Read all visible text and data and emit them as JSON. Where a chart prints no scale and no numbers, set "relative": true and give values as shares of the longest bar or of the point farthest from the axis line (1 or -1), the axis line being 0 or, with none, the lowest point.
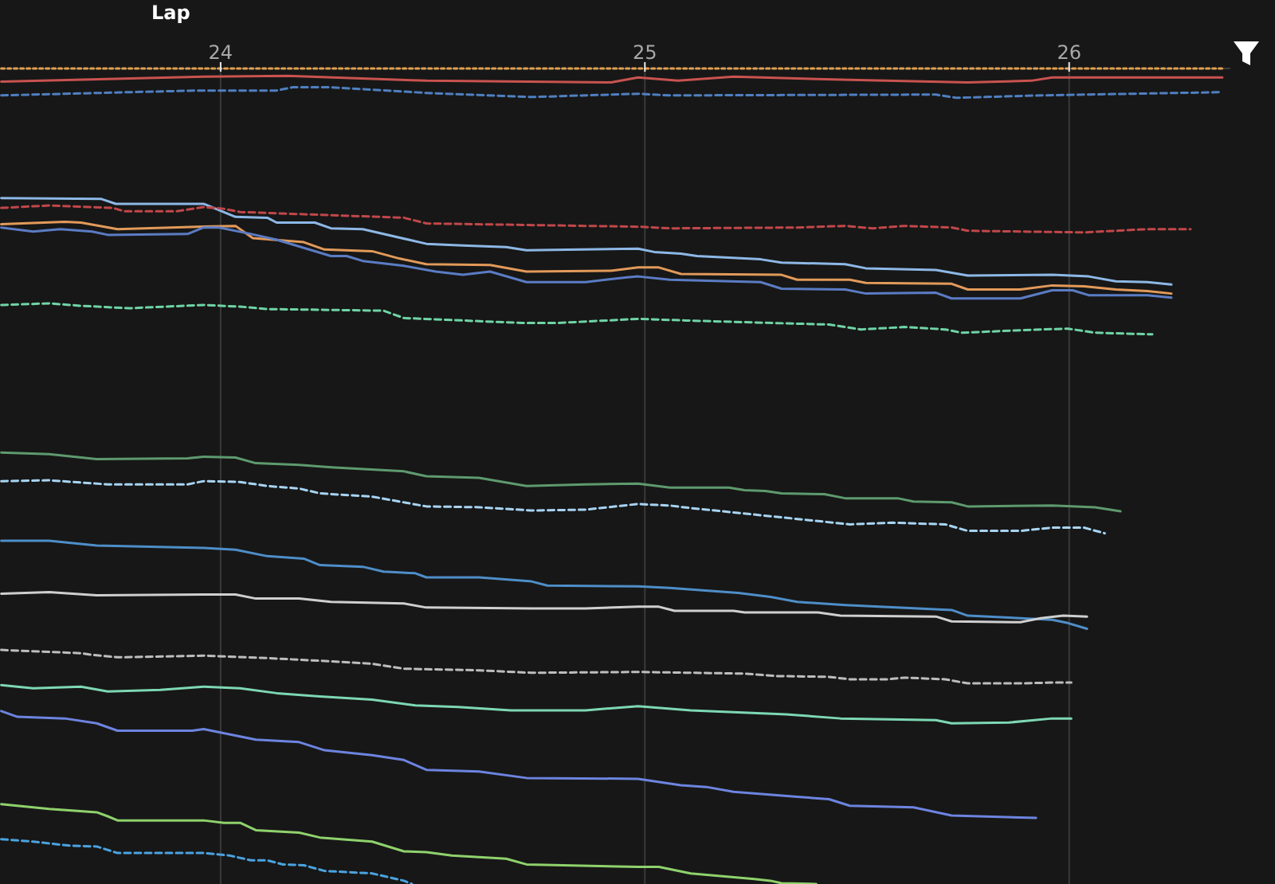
{
  "chart_data": {
    "type": "line",
    "xlabel": "Lap",
    "relative": true,
    "xlim": [
      23.48,
      26.38
    ],
    "xticks": [
      24,
      25,
      26
    ],
    "grid": "x",
    "tick_labels": "x",
    "series": [
      {
        "color": "#c9534f",
        "x": [
          23.483,
          23.96,
          24.158,
          24.485,
          24.92,
          24.984,
          25.078,
          25.209,
          25.483,
          25.761,
          25.911,
          25.96,
          26.361
        ],
        "values": [
          0.984,
          0.99,
          0.991,
          0.985,
          0.983,
          0.989,
          0.985,
          0.99,
          0.986,
          0.983,
          0.985,
          0.989,
          0.989
        ]
      },
      {
        "color": "#4f7fc0",
        "line_style": "dashed",
        "x": [
          23.483,
          23.633,
          23.945,
          24.132,
          24.17,
          24.26,
          24.485,
          24.733,
          24.984,
          25.059,
          25.686,
          25.735,
          25.933,
          26.361
        ],
        "values": [
          0.967,
          0.969,
          0.973,
          0.973,
          0.977,
          0.977,
          0.97,
          0.965,
          0.969,
          0.967,
          0.968,
          0.964,
          0.967,
          0.971
        ]
      },
      {
        "color": "#8db8e6",
        "x": [
          23.483,
          23.719,
          23.753,
          23.96,
          24.035,
          24.11,
          24.132,
          24.222,
          24.26,
          24.335,
          24.485,
          24.571,
          24.673,
          24.721,
          24.984,
          25.022,
          25.085,
          25.123,
          25.273,
          25.322,
          25.472,
          25.521,
          25.686,
          25.761,
          25.96,
          26.046,
          26.11,
          26.185,
          26.241
        ],
        "values": [
          0.841,
          0.84,
          0.834,
          0.834,
          0.818,
          0.817,
          0.811,
          0.811,
          0.804,
          0.803,
          0.785,
          0.783,
          0.781,
          0.777,
          0.779,
          0.775,
          0.773,
          0.77,
          0.766,
          0.762,
          0.76,
          0.755,
          0.753,
          0.746,
          0.747,
          0.745,
          0.739,
          0.738,
          0.735
        ]
      },
      {
        "color": "#c0474a",
        "line_style": "dashed",
        "x": [
          23.483,
          23.596,
          23.746,
          23.772,
          23.896,
          23.96,
          24.008,
          24.046,
          24.432,
          24.485,
          24.86,
          24.984,
          25.059,
          25.359,
          25.472,
          25.536,
          25.611,
          25.723,
          25.761,
          26.035,
          26.185,
          26.286
        ],
        "values": [
          0.829,
          0.832,
          0.829,
          0.825,
          0.825,
          0.83,
          0.828,
          0.824,
          0.817,
          0.81,
          0.807,
          0.806,
          0.804,
          0.805,
          0.807,
          0.804,
          0.807,
          0.805,
          0.801,
          0.799,
          0.803,
          0.803
        ]
      },
      {
        "color": "#e29a5a",
        "x": [
          23.483,
          23.633,
          23.671,
          23.757,
          23.945,
          24.035,
          24.076,
          24.196,
          24.245,
          24.357,
          24.421,
          24.485,
          24.635,
          24.721,
          24.92,
          24.984,
          25.033,
          25.085,
          25.322,
          25.359,
          25.483,
          25.521,
          25.723,
          25.761,
          25.885,
          25.96,
          26.035,
          26.11,
          26.185,
          26.241
        ],
        "values": [
          0.809,
          0.812,
          0.811,
          0.803,
          0.806,
          0.807,
          0.792,
          0.787,
          0.778,
          0.776,
          0.767,
          0.76,
          0.759,
          0.751,
          0.752,
          0.756,
          0.756,
          0.748,
          0.747,
          0.741,
          0.741,
          0.737,
          0.736,
          0.729,
          0.729,
          0.734,
          0.733,
          0.729,
          0.727,
          0.724
        ]
      },
      {
        "color": "#5b7cc4",
        "x": [
          23.483,
          23.558,
          23.622,
          23.697,
          23.734,
          23.922,
          23.96,
          23.997,
          24.072,
          24.132,
          24.26,
          24.297,
          24.335,
          24.432,
          24.507,
          24.571,
          24.635,
          24.721,
          24.86,
          24.958,
          24.984,
          25.059,
          25.273,
          25.322,
          25.472,
          25.521,
          25.686,
          25.723,
          25.885,
          25.96,
          26.008,
          26.046,
          26.185,
          26.241
        ],
        "values": [
          0.805,
          0.8,
          0.803,
          0.8,
          0.796,
          0.797,
          0.805,
          0.805,
          0.797,
          0.79,
          0.77,
          0.77,
          0.764,
          0.758,
          0.751,
          0.747,
          0.751,
          0.738,
          0.738,
          0.744,
          0.745,
          0.741,
          0.738,
          0.73,
          0.729,
          0.724,
          0.725,
          0.718,
          0.718,
          0.728,
          0.728,
          0.722,
          0.722,
          0.719
        ]
      },
      {
        "color": "#6fd4a6",
        "line_style": "dashed",
        "x": [
          23.483,
          23.596,
          23.671,
          23.783,
          23.96,
          24.046,
          24.11,
          24.384,
          24.432,
          24.71,
          24.796,
          24.984,
          25.097,
          25.434,
          25.509,
          25.611,
          25.708,
          25.746,
          25.933,
          25.997,
          26.061,
          26.196
        ],
        "values": [
          0.71,
          0.712,
          0.709,
          0.706,
          0.71,
          0.708,
          0.705,
          0.703,
          0.694,
          0.688,
          0.688,
          0.693,
          0.691,
          0.686,
          0.68,
          0.683,
          0.68,
          0.676,
          0.68,
          0.681,
          0.676,
          0.674
        ]
      },
      {
        "color": "#5e9a6e",
        "x": [
          23.483,
          23.596,
          23.708,
          23.922,
          23.96,
          24.035,
          24.083,
          24.185,
          24.26,
          24.432,
          24.485,
          24.609,
          24.721,
          24.86,
          24.984,
          25.059,
          25.198,
          25.235,
          25.284,
          25.322,
          25.423,
          25.472,
          25.596,
          25.633,
          25.723,
          25.761,
          25.96,
          26.061,
          26.121
        ],
        "values": [
          0.529,
          0.527,
          0.521,
          0.522,
          0.524,
          0.523,
          0.516,
          0.514,
          0.511,
          0.506,
          0.5,
          0.498,
          0.488,
          0.49,
          0.491,
          0.486,
          0.486,
          0.483,
          0.482,
          0.479,
          0.478,
          0.473,
          0.473,
          0.469,
          0.468,
          0.463,
          0.464,
          0.462,
          0.457
        ]
      },
      {
        "color": "#a7d4f2",
        "line_style": "dashed",
        "x": [
          23.483,
          23.596,
          23.734,
          23.922,
          23.96,
          24.046,
          24.11,
          24.185,
          24.234,
          24.357,
          24.485,
          24.609,
          24.733,
          24.86,
          24.984,
          25.059,
          25.108,
          25.296,
          25.483,
          25.584,
          25.708,
          25.761,
          25.885,
          25.96,
          26.035,
          26.084
        ],
        "values": [
          0.494,
          0.495,
          0.49,
          0.49,
          0.494,
          0.493,
          0.488,
          0.485,
          0.479,
          0.475,
          0.463,
          0.462,
          0.458,
          0.459,
          0.466,
          0.464,
          0.461,
          0.451,
          0.441,
          0.443,
          0.441,
          0.433,
          0.433,
          0.437,
          0.437,
          0.43
        ]
      },
      {
        "color": "#4e8ec8",
        "x": [
          23.483,
          23.596,
          23.708,
          23.96,
          24.035,
          24.11,
          24.196,
          24.234,
          24.335,
          24.384,
          24.459,
          24.485,
          24.609,
          24.733,
          24.77,
          24.984,
          25.059,
          25.22,
          25.296,
          25.359,
          25.472,
          25.723,
          25.761,
          25.885,
          25.96,
          25.997,
          26.042
        ],
        "values": [
          0.421,
          0.421,
          0.415,
          0.412,
          0.41,
          0.402,
          0.399,
          0.391,
          0.389,
          0.383,
          0.381,
          0.376,
          0.376,
          0.371,
          0.366,
          0.365,
          0.363,
          0.357,
          0.352,
          0.346,
          0.342,
          0.336,
          0.329,
          0.326,
          0.324,
          0.32,
          0.313
        ]
      },
      {
        "color": "#cfcfcf",
        "x": [
          23.483,
          23.596,
          23.708,
          23.96,
          24.035,
          24.083,
          24.185,
          24.26,
          24.432,
          24.485,
          24.733,
          24.86,
          24.984,
          25.033,
          25.07,
          25.209,
          25.235,
          25.408,
          25.461,
          25.686,
          25.723,
          25.885,
          25.933,
          25.986,
          26.042
        ],
        "values": [
          0.356,
          0.358,
          0.354,
          0.355,
          0.355,
          0.35,
          0.35,
          0.346,
          0.344,
          0.339,
          0.338,
          0.338,
          0.34,
          0.34,
          0.335,
          0.335,
          0.333,
          0.333,
          0.329,
          0.328,
          0.322,
          0.321,
          0.326,
          0.329,
          0.328
        ]
      },
      {
        "color": "#bdbdbd",
        "line_style": "dashed",
        "x": [
          23.483,
          23.671,
          23.697,
          23.757,
          23.96,
          24.11,
          24.26,
          24.357,
          24.432,
          24.609,
          24.733,
          24.984,
          25.235,
          25.311,
          25.434,
          25.483,
          25.573,
          25.611,
          25.708,
          25.761,
          25.885,
          25.96,
          26.005
        ],
        "values": [
          0.287,
          0.283,
          0.281,
          0.278,
          0.28,
          0.277,
          0.273,
          0.27,
          0.264,
          0.262,
          0.259,
          0.26,
          0.258,
          0.255,
          0.254,
          0.251,
          0.251,
          0.253,
          0.251,
          0.246,
          0.246,
          0.247,
          0.247
        ]
      },
      {
        "color": "#7dd8b4",
        "x": [
          23.483,
          23.558,
          23.671,
          23.734,
          23.858,
          23.96,
          24.046,
          24.132,
          24.234,
          24.357,
          24.459,
          24.56,
          24.684,
          24.86,
          24.984,
          25.108,
          25.333,
          25.461,
          25.686,
          25.723,
          25.858,
          25.96,
          26.005
        ],
        "values": [
          0.244,
          0.24,
          0.242,
          0.236,
          0.238,
          0.242,
          0.24,
          0.234,
          0.23,
          0.226,
          0.219,
          0.217,
          0.213,
          0.213,
          0.218,
          0.213,
          0.208,
          0.203,
          0.201,
          0.197,
          0.198,
          0.203,
          0.203
        ]
      },
      {
        "color": "#6d84e0",
        "x": [
          23.483,
          23.521,
          23.633,
          23.708,
          23.757,
          23.933,
          23.96,
          24.083,
          24.185,
          24.245,
          24.357,
          24.432,
          24.485,
          24.609,
          24.721,
          24.984,
          25.085,
          25.145,
          25.209,
          25.359,
          25.434,
          25.483,
          25.633,
          25.723,
          25.922
        ],
        "values": [
          0.212,
          0.205,
          0.203,
          0.197,
          0.188,
          0.188,
          0.19,
          0.177,
          0.174,
          0.164,
          0.158,
          0.152,
          0.14,
          0.138,
          0.13,
          0.129,
          0.121,
          0.119,
          0.113,
          0.107,
          0.104,
          0.096,
          0.094,
          0.084,
          0.081
        ]
      },
      {
        "color": "#8fd26c",
        "x": [
          23.483,
          23.596,
          23.708,
          23.734,
          23.757,
          23.96,
          24.008,
          24.046,
          24.083,
          24.185,
          24.234,
          24.357,
          24.432,
          24.485,
          24.545,
          24.673,
          24.721,
          24.984,
          25.033,
          25.108,
          25.258,
          25.296,
          25.322,
          25.404
        ],
        "values": [
          0.098,
          0.092,
          0.088,
          0.083,
          0.078,
          0.078,
          0.075,
          0.075,
          0.066,
          0.063,
          0.057,
          0.052,
          0.04,
          0.039,
          0.035,
          0.031,
          0.024,
          0.021,
          0.021,
          0.013,
          0.006,
          0.004,
          0.001,
          0
        ]
      },
      {
        "color": "#4aa3e0",
        "line_style": "dashed",
        "x": [
          23.483,
          23.558,
          23.644,
          23.708,
          23.757,
          23.96,
          24.02,
          24.072,
          24.11,
          24.147,
          24.196,
          24.245,
          24.357,
          24.432,
          24.451
        ],
        "values": [
          0.055,
          0.052,
          0.047,
          0.046,
          0.038,
          0.038,
          0.035,
          0.029,
          0.029,
          0.024,
          0.023,
          0.016,
          0.013,
          0.004,
          0
        ]
      },
      {
        "color": "#e0a050",
        "line_style": "dotted",
        "x": [
          23.483,
          26.361
        ],
        "values": [
          1,
          1
        ]
      }
    ]
  }
}
